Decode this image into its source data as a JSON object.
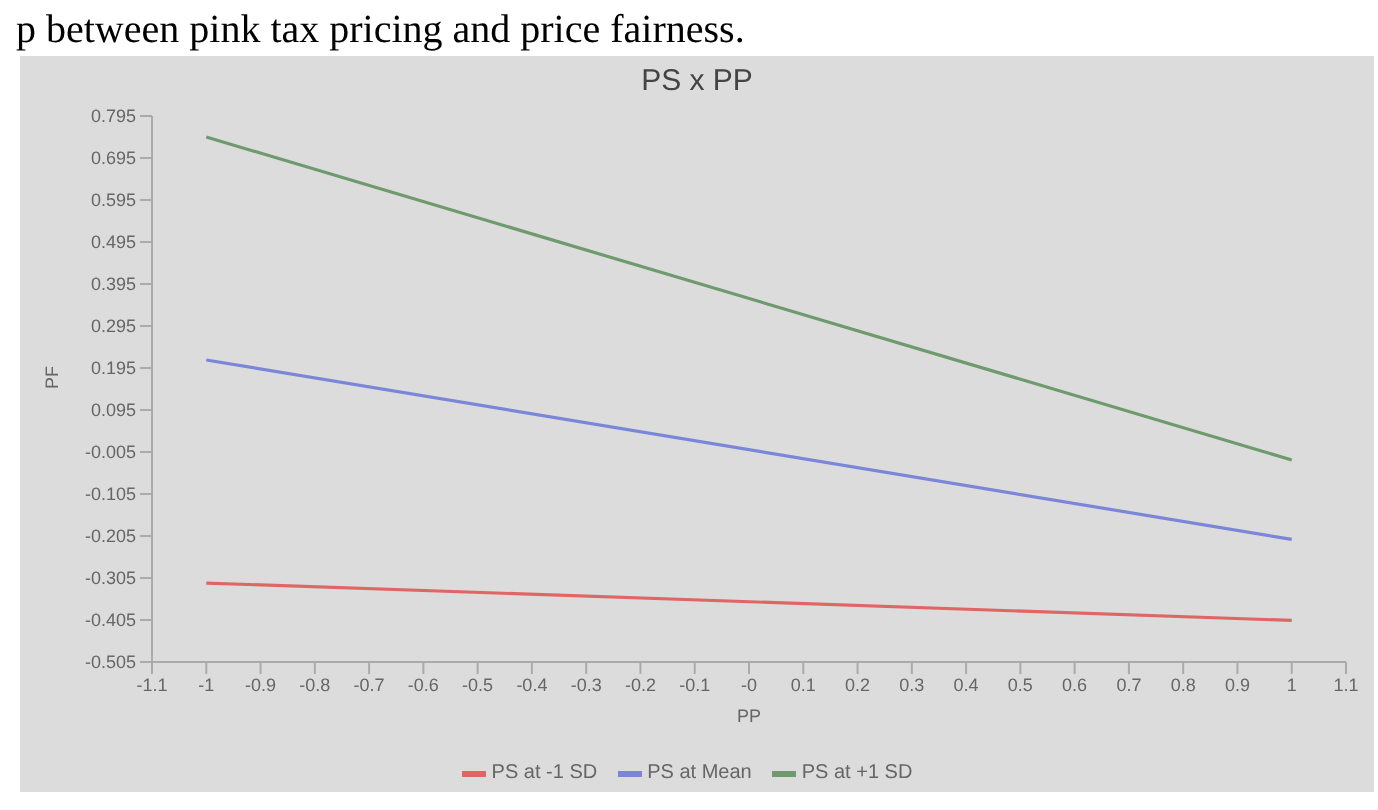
{
  "chart_data": {
    "type": "line",
    "title": "PS x PP",
    "xlabel": "PP",
    "ylabel": "PF",
    "annotations": [
      "p between pink tax pricing and price fairness."
    ],
    "x": [
      -1,
      1
    ],
    "series": [
      {
        "name": "PS at -1 SD",
        "color": "#e06666",
        "values": [
          -0.317,
          -0.406
        ]
      },
      {
        "name": "PS at Mean",
        "color": "#7b86d8",
        "values": [
          0.214,
          -0.213
        ]
      },
      {
        "name": "PS at +1 SD",
        "color": "#6e9a6e",
        "values": [
          0.745,
          -0.024
        ]
      }
    ],
    "xlim": [
      -1.1,
      1.1
    ],
    "xticks": [
      -1.1,
      -1,
      -0.9,
      -0.8,
      -0.7,
      -0.6,
      -0.5,
      -0.4,
      -0.3,
      -0.2,
      -0.1,
      {
        "value": 0,
        "label": "-0"
      },
      0.1,
      0.2,
      0.3,
      0.4,
      0.5,
      0.6,
      0.7,
      0.8,
      0.9,
      1,
      1.1
    ],
    "ylim": [
      -0.505,
      0.795
    ],
    "yticks": [
      -0.505,
      -0.405,
      -0.305,
      -0.205,
      -0.105,
      -0.005,
      0.095,
      0.195,
      0.295,
      0.395,
      0.495,
      0.595,
      0.695,
      0.795
    ],
    "grid": false,
    "legend": "bottom",
    "marker": "none",
    "line_style": "solid"
  }
}
